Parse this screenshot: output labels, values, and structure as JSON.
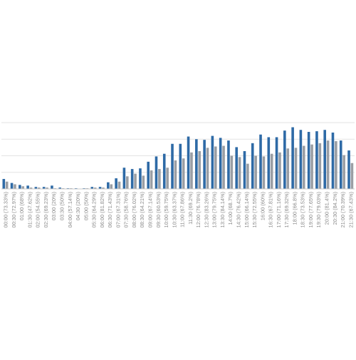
{
  "chart_data": {
    "type": "bar",
    "title": "",
    "xlabel": "",
    "ylabel": "",
    "ylim": [
      0,
      100
    ],
    "grid": true,
    "gridlines": [
      0,
      25,
      50,
      75,
      100
    ],
    "categories": [
      "00:00",
      "00:30",
      "01:00",
      "01:30",
      "02:00",
      "02:30",
      "03:00",
      "03:30",
      "04:00",
      "04:30",
      "05:00",
      "05:30",
      "06:00",
      "06:30",
      "07:00",
      "07:30",
      "08:00",
      "08:30",
      "09:00",
      "09:30",
      "10:00",
      "10:30",
      "11:00",
      "11:30",
      "12:00",
      "12:30",
      "13:00",
      "13:30",
      "14:00",
      "14:30",
      "15:00",
      "15:30",
      "16:00",
      "16:30",
      "17:00",
      "17:30",
      "18:00",
      "18:30",
      "19:00",
      "19:30",
      "20:00",
      "20:30",
      "21:00",
      "21:30"
    ],
    "tick_labels": [
      "00:00 (73.33%)",
      "00:30 (72.97%)",
      "01:00 (68%)",
      "01:30 (47.62%)",
      "02:00 (54.55%)",
      "02:30 (69.23%)",
      "03:00 (20%)",
      "03:30 (50%)",
      "04:00 (57.14%)",
      "04:30 (20%)",
      "05:00 (50%)",
      "05:30 (64.29%)",
      "06:00 (81.82%)",
      "06:30 (71.43%)",
      "07:00 (67.31%)",
      "07:30 (58.76%)",
      "08:00 (76.02%)",
      "08:30 (64.21%)",
      "09:00 (67.14%)",
      "09:30 (60.53%)",
      "10:00 (59.75%)",
      "10:30 (63.37%)",
      "11:00 (67.86%)",
      "11:30 (69.2%)",
      "12:00 (76.78%)",
      "12:30 (83.26%)",
      "13:00 (79.75%)",
      "13:30 (84.14%)",
      "14:00 (68.7%)",
      "14:30 (76.42%)",
      "15:00 (66.14%)",
      "15:30 (72.55%)",
      "16:00 (60%)",
      "16:30 (67.81%)",
      "17:00 (71.16%)",
      "17:30 (69.32%)",
      "18:00 (66.8%)",
      "18:30 (73.53%)",
      "19:00 (77.65%)",
      "19:30 (79.03%)",
      "20:00 (81.4%)",
      "20:30 (84.2%)",
      "21:00 (70.39%)",
      "21:30 (67.43%)"
    ],
    "series": [
      {
        "color": "#2e6aa6",
        "values": [
          15,
          9,
          6,
          5,
          3,
          3,
          5,
          2,
          1,
          1,
          1,
          3,
          3,
          10,
          16,
          32,
          30,
          31,
          41,
          49,
          53,
          68,
          68,
          79,
          75,
          74,
          80,
          77,
          73,
          63,
          57,
          69,
          82,
          78,
          78,
          88,
          93,
          89,
          86,
          87,
          89,
          85,
          73,
          58
        ]
      },
      {
        "color": "#9a9ea4",
        "values": [
          11,
          7,
          4,
          2,
          2,
          2,
          1,
          1,
          1,
          0,
          1,
          2,
          2,
          7,
          11,
          19,
          23,
          20,
          28,
          30,
          32,
          43,
          46,
          55,
          57,
          62,
          64,
          65,
          50,
          48,
          38,
          50,
          49,
          53,
          55,
          61,
          62,
          65,
          67,
          69,
          73,
          72,
          51,
          39
        ]
      }
    ]
  }
}
